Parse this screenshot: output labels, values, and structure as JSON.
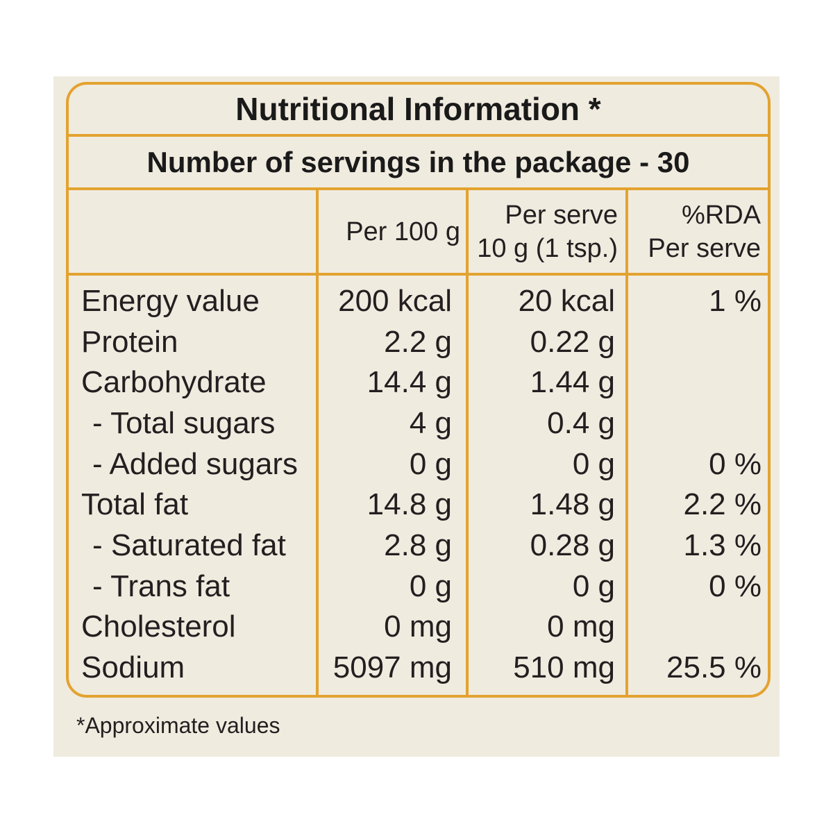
{
  "title": "Nutritional Information *",
  "servings_line": "Number of servings in the package - 30",
  "header": {
    "per_100g": "Per 100 g",
    "per_serve": {
      "line1": "Per serve",
      "line2": "10 g (1 tsp.)"
    },
    "rda": {
      "line1": "%RDA",
      "line2": "Per serve"
    }
  },
  "rows": [
    {
      "nutrient": "Energy value",
      "per_100g": "200 kcal",
      "per_serve": "20 kcal",
      "rda": "1 %"
    },
    {
      "nutrient": "Protein",
      "per_100g": "2.2 g",
      "per_serve": "0.22 g",
      "rda": ""
    },
    {
      "nutrient": "Carbohydrate",
      "per_100g": "14.4 g",
      "per_serve": "1.44 g",
      "rda": ""
    },
    {
      "nutrient": "- Total sugars",
      "per_100g": "4 g",
      "per_serve": "0.4 g",
      "rda": ""
    },
    {
      "nutrient": "- Added sugars",
      "per_100g": "0 g",
      "per_serve": "0 g",
      "rda": "0 %"
    },
    {
      "nutrient": "Total fat",
      "per_100g": "14.8 g",
      "per_serve": "1.48 g",
      "rda": "2.2 %"
    },
    {
      "nutrient": "- Saturated fat",
      "per_100g": "2.8 g",
      "per_serve": "0.28 g",
      "rda": "1.3 %"
    },
    {
      "nutrient": "- Trans fat",
      "per_100g": "0 g",
      "per_serve": "0 g",
      "rda": "0 %"
    },
    {
      "nutrient": "Cholesterol",
      "per_100g": "0 mg",
      "per_serve": "0 mg",
      "rda": ""
    },
    {
      "nutrient": "Sodium",
      "per_100g": "5097 mg",
      "per_serve": "510 mg",
      "rda": "25.5 %"
    }
  ],
  "footnote": "*Approximate values",
  "colors": {
    "page": "#ffffff",
    "panel": "#f0ebdf",
    "border": "#e3a330",
    "text": "#231f20"
  }
}
